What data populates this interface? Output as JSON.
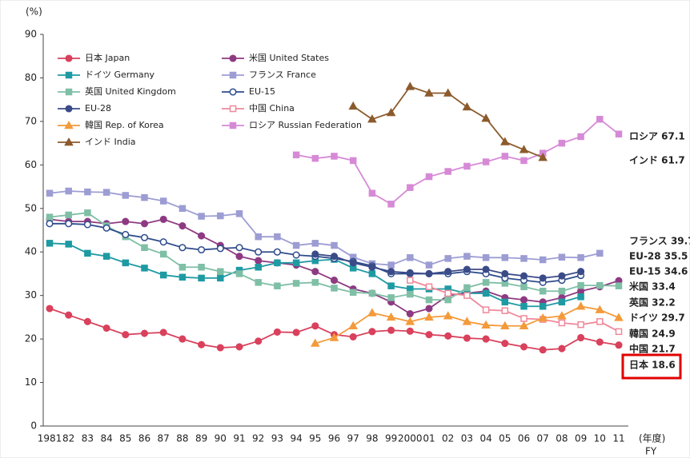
{
  "chart_data": {
    "type": "line",
    "y_label": "(%)",
    "x_label": "(年度)",
    "x_label_en": "FY",
    "categories": [
      "1981",
      "82",
      "83",
      "84",
      "85",
      "86",
      "87",
      "88",
      "89",
      "90",
      "91",
      "92",
      "93",
      "94",
      "95",
      "96",
      "97",
      "98",
      "99",
      "2000",
      "01",
      "02",
      "03",
      "04",
      "05",
      "06",
      "07",
      "08",
      "09",
      "10",
      "11"
    ],
    "ylim": [
      0,
      90
    ],
    "yticks": [
      0,
      10,
      20,
      30,
      40,
      50,
      60,
      70,
      80,
      90
    ],
    "series": [
      {
        "name": "日本 Japan",
        "color": "#d9415c",
        "marker": "circle",
        "filled": true,
        "values": [
          27,
          25.5,
          24,
          22.5,
          21,
          21.3,
          21.5,
          20,
          18.7,
          18,
          18.2,
          19.5,
          21.6,
          21.5,
          23,
          21,
          20.5,
          21.7,
          22,
          21.8,
          21,
          20.7,
          20.2,
          20,
          19,
          18.2,
          17.5,
          17.8,
          20.3,
          19.3,
          18.6
        ]
      },
      {
        "name": "米国 United States",
        "color": "#8e3a82",
        "marker": "circle",
        "filled": true,
        "values": [
          47.5,
          47,
          47,
          46.5,
          47,
          46.5,
          47.5,
          46,
          43.7,
          41.5,
          39,
          38,
          37.5,
          37,
          35.5,
          33.5,
          31.5,
          30.5,
          28.5,
          25.8,
          27,
          30,
          30.5,
          31,
          29.5,
          29,
          28.5,
          29.5,
          31,
          32,
          33.4
        ]
      },
      {
        "name": "ドイツ Germany",
        "color": "#1e9aa3",
        "marker": "square",
        "filled": true,
        "values": [
          42,
          41.8,
          39.7,
          39,
          37.5,
          36.3,
          34.7,
          34.2,
          34,
          34,
          35.8,
          36.5,
          37.5,
          37.5,
          38,
          38.3,
          36.3,
          35,
          32.2,
          31.5,
          31.5,
          31.5,
          30.5,
          30.5,
          28.5,
          27.5,
          27.5,
          28.5,
          29.7,
          null,
          null
        ]
      },
      {
        "name": "フランス France",
        "color": "#9d9dd4",
        "marker": "square",
        "filled": true,
        "values": [
          53.5,
          54,
          53.8,
          53.7,
          53,
          52.5,
          51.7,
          50,
          48.2,
          48.3,
          48.8,
          43.5,
          43.5,
          41.5,
          42,
          41.5,
          38.8,
          37.3,
          37,
          38.7,
          37,
          38.5,
          39,
          38.7,
          38.7,
          38.5,
          38.2,
          38.8,
          38.7,
          39.7,
          null
        ]
      },
      {
        "name": "英国 United Kingdom",
        "color": "#7fbfa6",
        "marker": "square",
        "filled": true,
        "values": [
          48,
          48.5,
          49,
          46,
          43.5,
          41,
          39.5,
          36.5,
          36.5,
          35.5,
          35,
          33,
          32.2,
          32.8,
          33,
          31.7,
          30.7,
          30.5,
          29.5,
          30.3,
          29,
          29,
          31.8,
          33,
          32.8,
          32,
          31,
          31,
          32.3,
          32.3,
          32.2
        ]
      },
      {
        "name": "EU-15",
        "color": "#2f4c8c",
        "marker": "circle",
        "filled": false,
        "values": [
          46.5,
          46.5,
          46.3,
          45.5,
          44,
          43.3,
          42.3,
          41,
          40.5,
          40.8,
          41,
          40,
          40,
          39.3,
          39,
          38.5,
          37.8,
          36.8,
          35,
          35,
          35,
          35,
          35.5,
          35,
          34,
          33.5,
          33,
          33.5,
          34.6,
          null,
          null
        ]
      },
      {
        "name": "EU-28",
        "color": "#3b4b88",
        "marker": "circle",
        "filled": true,
        "values": [
          null,
          null,
          null,
          null,
          null,
          null,
          null,
          null,
          null,
          null,
          null,
          null,
          null,
          null,
          39.5,
          39,
          37.5,
          36.5,
          35.5,
          35.2,
          35,
          35.5,
          36,
          36,
          35,
          34.5,
          34,
          34.5,
          35.5,
          null,
          null
        ]
      },
      {
        "name": "中国 China",
        "color": "#f0889a",
        "marker": "square",
        "filled": false,
        "values": [
          null,
          null,
          null,
          null,
          null,
          null,
          null,
          null,
          null,
          null,
          null,
          null,
          null,
          null,
          null,
          null,
          null,
          null,
          null,
          33.5,
          32,
          30.5,
          30,
          26.7,
          26.5,
          24.7,
          24.5,
          23.7,
          23.3,
          24,
          21.7
        ]
      },
      {
        "name": "韓国 Rep. of Korea",
        "color": "#f39a3a",
        "marker": "triangle",
        "filled": true,
        "values": [
          null,
          null,
          null,
          null,
          null,
          null,
          null,
          null,
          null,
          null,
          null,
          null,
          null,
          null,
          19,
          20.3,
          23,
          26,
          25,
          24,
          25,
          25.3,
          24,
          23.2,
          23,
          23,
          24.8,
          25.3,
          27.5,
          26.7,
          24.9
        ]
      },
      {
        "name": "ロシア Russian Federation",
        "color": "#d68ad6",
        "marker": "square",
        "filled": true,
        "values": [
          null,
          null,
          null,
          null,
          null,
          null,
          null,
          null,
          null,
          null,
          null,
          null,
          null,
          62.3,
          61.5,
          62,
          61,
          53.5,
          51,
          54.8,
          57.3,
          58.5,
          59.7,
          60.7,
          62,
          61,
          62.7,
          65,
          66.5,
          70.5,
          67.1
        ]
      },
      {
        "name": "インド India",
        "color": "#8c5a2c",
        "marker": "triangle",
        "filled": true,
        "values": [
          null,
          null,
          null,
          null,
          null,
          null,
          null,
          null,
          null,
          null,
          null,
          null,
          null,
          null,
          null,
          null,
          73.5,
          70.5,
          72,
          78,
          76.5,
          76.5,
          73.3,
          70.7,
          65.3,
          63.5,
          61.7,
          null,
          null,
          null,
          null
        ]
      }
    ],
    "end_labels": [
      "ロシア 67.1",
      "インド 61.7",
      "フランス 39.7",
      "EU-28 35.5",
      "EU-15 34.6",
      "米国 33.4",
      "英国 32.2",
      "ドイツ 29.7",
      "韓国 24.9",
      "中国 21.7",
      "日本 18.6"
    ]
  }
}
